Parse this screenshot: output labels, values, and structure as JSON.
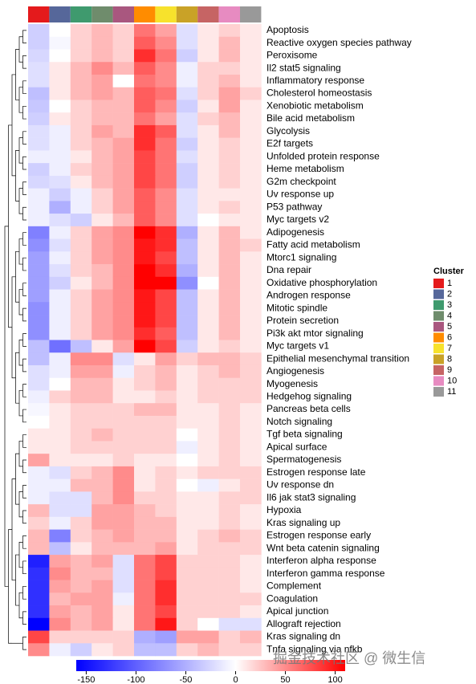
{
  "chart_data": {
    "type": "heatmap",
    "columns": [
      "1",
      "2",
      "3",
      "4",
      "5",
      "6",
      "7",
      "8",
      "9",
      "10",
      "11"
    ],
    "column_colors": [
      "#e41a1c",
      "#56679a",
      "#3f9a6e",
      "#6f8c6c",
      "#a9577f",
      "#ff8c00",
      "#f7e22c",
      "#c9a227",
      "#c66464",
      "#e78bc1",
      "#999999"
    ],
    "legend_title": "Cluster",
    "rows": [
      "Apoptosis",
      "Reactive oxygen species pathway",
      "Peroxisome",
      "Il2 stat5 signaling",
      "Inflammatory response",
      "Cholesterol homeostasis",
      "Xenobiotic metabolism",
      "Bile acid metabolism",
      "Glycolysis",
      "E2f targets",
      "Unfolded protein response",
      "Heme metabolism",
      "G2m checkpoint",
      "Uv response up",
      "P53 pathway",
      "Myc targets v2",
      "Adipogenesis",
      "Fatty acid metabolism",
      "Mtorc1 signaling",
      "Dna repair",
      "Oxidative phosphorylation",
      "Androgen response",
      "Mitotic spindle",
      "Protein secretion",
      "Pi3k akt mtor signaling",
      "Myc targets v1",
      "Epithelial mesenchymal transition",
      "Angiogenesis",
      "Myogenesis",
      "Hedgehog signaling",
      "Pancreas beta cells",
      "Notch signaling",
      "Tgf beta signaling",
      "Apical surface",
      "Spermatogenesis",
      "Estrogen response late",
      "Uv response dn",
      "Il6 jak stat3 signaling",
      "Hypoxia",
      "Kras signaling up",
      "Estrogen response early",
      "Wnt beta catenin signaling",
      "Interferon alpha response",
      "Interferon gamma response",
      "Complement",
      "Coagulation",
      "Apical junction",
      "Allograft rejection",
      "Kras signaling dn",
      "Tnfa signaling via nfkb"
    ],
    "values": [
      [
        -30,
        0,
        20,
        30,
        20,
        60,
        40,
        -20,
        10,
        20,
        10
      ],
      [
        -30,
        -5,
        20,
        30,
        20,
        70,
        50,
        -20,
        10,
        30,
        10
      ],
      [
        -25,
        0,
        20,
        30,
        20,
        90,
        60,
        -30,
        10,
        30,
        10
      ],
      [
        -20,
        10,
        30,
        50,
        30,
        70,
        50,
        -10,
        20,
        20,
        10
      ],
      [
        -20,
        10,
        30,
        40,
        0,
        60,
        50,
        -10,
        20,
        30,
        10
      ],
      [
        -40,
        10,
        30,
        40,
        30,
        70,
        60,
        -20,
        20,
        40,
        20
      ],
      [
        -35,
        0,
        20,
        30,
        30,
        70,
        50,
        -30,
        10,
        40,
        10
      ],
      [
        -30,
        10,
        20,
        30,
        30,
        60,
        40,
        -20,
        20,
        30,
        10
      ],
      [
        -20,
        -10,
        20,
        40,
        30,
        90,
        70,
        -20,
        10,
        30,
        10
      ],
      [
        -20,
        -10,
        20,
        30,
        40,
        90,
        60,
        -30,
        10,
        20,
        10
      ],
      [
        -10,
        -10,
        10,
        30,
        40,
        80,
        60,
        -20,
        10,
        20,
        10
      ],
      [
        -30,
        -10,
        20,
        30,
        40,
        80,
        60,
        -30,
        10,
        20,
        10
      ],
      [
        -25,
        -20,
        10,
        30,
        40,
        80,
        60,
        -30,
        10,
        20,
        10
      ],
      [
        -10,
        -30,
        -10,
        20,
        40,
        70,
        50,
        -20,
        10,
        10,
        10
      ],
      [
        -10,
        -50,
        -10,
        20,
        40,
        70,
        50,
        -20,
        10,
        20,
        10
      ],
      [
        -10,
        -20,
        -30,
        10,
        30,
        70,
        50,
        -20,
        0,
        10,
        10
      ],
      [
        -80,
        -10,
        20,
        40,
        50,
        110,
        90,
        -50,
        10,
        30,
        10
      ],
      [
        -70,
        -20,
        20,
        40,
        50,
        100,
        90,
        -40,
        10,
        30,
        20
      ],
      [
        -60,
        -10,
        20,
        40,
        50,
        100,
        80,
        -40,
        10,
        30,
        10
      ],
      [
        -60,
        -20,
        20,
        30,
        50,
        110,
        90,
        -50,
        10,
        30,
        10
      ],
      [
        -60,
        -30,
        10,
        30,
        50,
        130,
        110,
        -70,
        0,
        30,
        10
      ],
      [
        -60,
        -10,
        20,
        40,
        50,
        100,
        80,
        -40,
        10,
        30,
        10
      ],
      [
        -70,
        -10,
        20,
        40,
        50,
        100,
        80,
        -40,
        10,
        30,
        10
      ],
      [
        -70,
        -10,
        20,
        40,
        50,
        100,
        80,
        -40,
        10,
        30,
        10
      ],
      [
        -70,
        -10,
        20,
        40,
        50,
        90,
        70,
        -40,
        10,
        30,
        10
      ],
      [
        -40,
        -90,
        -40,
        10,
        40,
        130,
        80,
        -30,
        10,
        20,
        10
      ],
      [
        -40,
        -10,
        50,
        50,
        -20,
        10,
        40,
        20,
        30,
        30,
        20
      ],
      [
        -20,
        -10,
        40,
        40,
        -10,
        20,
        30,
        10,
        20,
        30,
        20
      ],
      [
        -20,
        0,
        30,
        30,
        10,
        20,
        30,
        10,
        20,
        20,
        20
      ],
      [
        -10,
        20,
        30,
        30,
        10,
        10,
        20,
        10,
        20,
        20,
        20
      ],
      [
        -5,
        10,
        20,
        20,
        20,
        30,
        30,
        10,
        10,
        20,
        10
      ],
      [
        0,
        10,
        20,
        20,
        20,
        20,
        20,
        10,
        10,
        20,
        10
      ],
      [
        10,
        10,
        20,
        30,
        20,
        20,
        20,
        0,
        10,
        20,
        10
      ],
      [
        10,
        10,
        20,
        20,
        20,
        20,
        20,
        -10,
        10,
        20,
        10
      ],
      [
        40,
        10,
        10,
        10,
        20,
        10,
        10,
        0,
        10,
        20,
        10
      ],
      [
        -10,
        -20,
        20,
        30,
        50,
        10,
        20,
        10,
        20,
        20,
        20
      ],
      [
        -10,
        -10,
        30,
        30,
        50,
        10,
        20,
        0,
        -10,
        10,
        20
      ],
      [
        -10,
        -20,
        -20,
        30,
        50,
        20,
        20,
        10,
        10,
        20,
        20
      ],
      [
        30,
        -20,
        -20,
        40,
        40,
        30,
        20,
        10,
        10,
        20,
        10
      ],
      [
        20,
        -10,
        20,
        40,
        40,
        30,
        30,
        10,
        10,
        20,
        10
      ],
      [
        30,
        -80,
        20,
        30,
        40,
        30,
        30,
        10,
        20,
        30,
        20
      ],
      [
        30,
        -40,
        10,
        30,
        30,
        30,
        40,
        10,
        20,
        20,
        20
      ],
      [
        -140,
        40,
        30,
        40,
        -20,
        60,
        80,
        20,
        20,
        20,
        10
      ],
      [
        -130,
        50,
        30,
        30,
        -20,
        60,
        80,
        20,
        20,
        20,
        10
      ],
      [
        -130,
        40,
        30,
        40,
        -20,
        60,
        90,
        20,
        20,
        20,
        10
      ],
      [
        -130,
        30,
        40,
        40,
        -10,
        60,
        90,
        20,
        20,
        20,
        20
      ],
      [
        -130,
        40,
        30,
        40,
        10,
        60,
        80,
        20,
        20,
        20,
        10
      ],
      [
        -160,
        50,
        30,
        40,
        10,
        60,
        100,
        20,
        0,
        -20,
        -20
      ],
      [
        80,
        20,
        20,
        20,
        20,
        -50,
        -60,
        40,
        40,
        20,
        30
      ],
      [
        50,
        -10,
        -30,
        10,
        20,
        -40,
        -40,
        20,
        30,
        20,
        20
      ]
    ],
    "scale": {
      "lim": [
        -160,
        110
      ],
      "ticks": [
        -150,
        -100,
        -50,
        0,
        50,
        100
      ],
      "colors": [
        "#0000ff",
        "#ffffff",
        "#ff0000"
      ]
    },
    "watermark": "掘金技术社区 @ 微生信"
  }
}
